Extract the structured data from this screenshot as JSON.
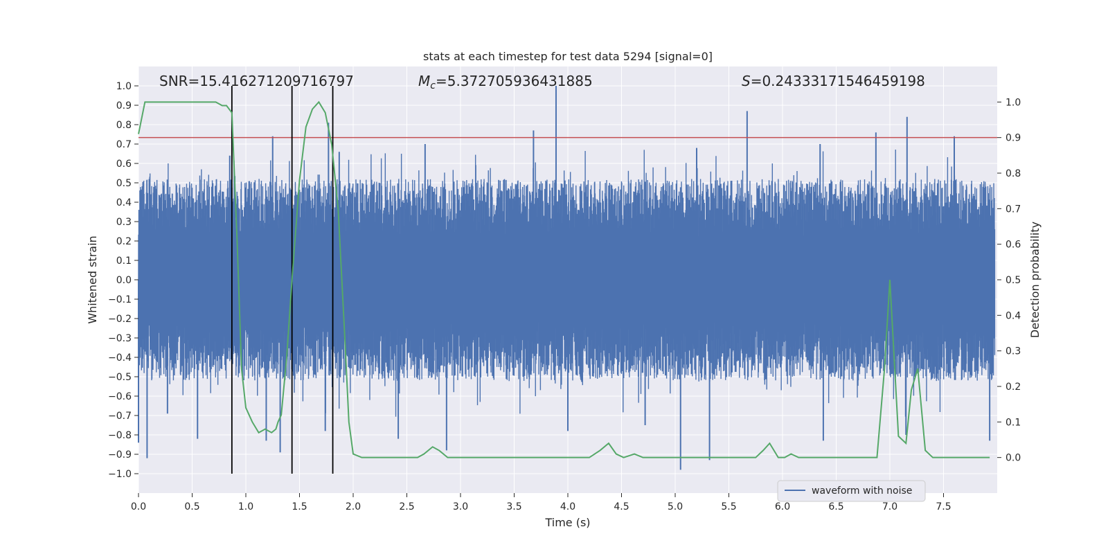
{
  "chart_data": {
    "type": "line",
    "title": "stats at each timestep for test data 5294 [signal=0]",
    "xlabel": "Time (s)",
    "ylabel_left": "Whitened strain",
    "ylabel_right": "Detection probability",
    "xlim": [
      0.0,
      8.0
    ],
    "ylim_left": [
      -1.1,
      1.1
    ],
    "ylim_right": [
      -0.1,
      1.1
    ],
    "x_ticks": [
      0.0,
      0.5,
      1.0,
      1.5,
      2.0,
      2.5,
      3.0,
      3.5,
      4.0,
      4.5,
      5.0,
      5.5,
      6.0,
      6.5,
      7.0,
      7.5
    ],
    "x_tick_labels": [
      "0.0",
      "0.5",
      "1.0",
      "1.5",
      "2.0",
      "2.5",
      "3.0",
      "3.5",
      "4.0",
      "4.5",
      "5.0",
      "5.5",
      "6.0",
      "6.5",
      "7.0",
      "7.5"
    ],
    "y_left_ticks": [
      1.0,
      0.9,
      0.8,
      0.7,
      0.6,
      0.5,
      0.4,
      0.3,
      0.2,
      0.1,
      0.0,
      -0.1,
      -0.2,
      -0.3,
      -0.4,
      -0.5,
      -0.6,
      -0.7,
      -0.8,
      -0.9,
      -1.0
    ],
    "y_left_tick_labels": [
      "1.0",
      "0.9",
      "0.8",
      "0.7",
      "0.6",
      "0.5",
      "0.4",
      "0.3",
      "0.2",
      "0.1",
      "0.0",
      "−0.1",
      "−0.2",
      "−0.3",
      "−0.4",
      "−0.5",
      "−0.6",
      "−0.7",
      "−0.8",
      "−0.9",
      "−1.0"
    ],
    "y_right_ticks": [
      1.0,
      0.9,
      0.8,
      0.7,
      0.6,
      0.5,
      0.4,
      0.3,
      0.2,
      0.1,
      0.0
    ],
    "y_right_tick_labels": [
      "1.0",
      "0.9",
      "0.8",
      "0.7",
      "0.6",
      "0.5",
      "0.4",
      "0.3",
      "0.2",
      "0.1",
      "0.0"
    ],
    "annotations": {
      "snr": "SNR=15.416271209716797",
      "mc_symbol": "M",
      "mc_sub": "c",
      "mc_value": "=5.372705936431885",
      "s_symbol": "S",
      "s_value": "=0.24333171546459198"
    },
    "threshold": {
      "value": 0.9,
      "axis": "right",
      "color": "#c44e52"
    },
    "vertical_markers": [
      0.87,
      1.43,
      1.81
    ],
    "legend": {
      "label": "waveform with noise",
      "placement": "bottom-right"
    },
    "colors": {
      "waveform": "#4c72b0",
      "probability": "#55a868",
      "markers": "#000000",
      "background": "#eaeaf2",
      "grid": "#ffffff"
    },
    "waveform": {
      "description_series": "waveform with noise",
      "spikes": [
        {
          "t": 0.0,
          "v": -0.84
        },
        {
          "t": 0.08,
          "v": -0.92
        },
        {
          "t": 0.55,
          "v": -0.82
        },
        {
          "t": 0.27,
          "v": -0.69
        },
        {
          "t": 0.83,
          "v": 0.47
        },
        {
          "t": 0.85,
          "v": 0.64
        },
        {
          "t": 1.19,
          "v": -0.83
        },
        {
          "t": 1.25,
          "v": 0.74
        },
        {
          "t": 1.32,
          "v": -0.89
        },
        {
          "t": 1.74,
          "v": -0.78
        },
        {
          "t": 1.77,
          "v": 0.81
        },
        {
          "t": 1.87,
          "v": 0.66
        },
        {
          "t": 2.42,
          "v": -0.82
        },
        {
          "t": 2.67,
          "v": 0.7
        },
        {
          "t": 2.87,
          "v": -0.88
        },
        {
          "t": 3.68,
          "v": 0.77
        },
        {
          "t": 3.89,
          "v": 1.0
        },
        {
          "t": 4.0,
          "v": -0.78
        },
        {
          "t": 4.72,
          "v": -0.75
        },
        {
          "t": 5.05,
          "v": -0.98
        },
        {
          "t": 5.2,
          "v": 0.68
        },
        {
          "t": 5.32,
          "v": -0.93
        },
        {
          "t": 5.67,
          "v": 0.87
        },
        {
          "t": 6.35,
          "v": 0.7
        },
        {
          "t": 6.38,
          "v": -0.83
        },
        {
          "t": 6.87,
          "v": 0.76
        },
        {
          "t": 7.16,
          "v": 0.84
        },
        {
          "t": 7.15,
          "v": -0.8
        },
        {
          "t": 7.6,
          "v": 0.74
        },
        {
          "t": 7.93,
          "v": -0.83
        }
      ]
    },
    "probability": {
      "x": [
        0.0,
        0.06,
        0.12,
        0.2,
        0.3,
        0.4,
        0.5,
        0.6,
        0.66,
        0.72,
        0.78,
        0.82,
        0.87,
        0.92,
        0.96,
        1.0,
        1.06,
        1.12,
        1.18,
        1.24,
        1.28,
        1.3,
        1.33,
        1.38,
        1.43,
        1.5,
        1.56,
        1.62,
        1.68,
        1.74,
        1.8,
        1.86,
        1.92,
        1.96,
        2.0,
        2.08,
        2.15,
        2.3,
        2.5,
        2.6,
        2.66,
        2.74,
        2.8,
        2.88,
        3.0,
        3.08,
        3.3,
        3.5,
        3.8,
        4.0,
        4.2,
        4.3,
        4.38,
        4.45,
        4.52,
        4.62,
        4.7,
        4.8,
        4.9,
        5.0,
        5.2,
        5.4,
        5.6,
        5.75,
        5.82,
        5.88,
        5.96,
        6.02,
        6.08,
        6.15,
        6.3,
        6.5,
        6.62,
        6.8,
        6.88,
        6.95,
        7.0,
        7.08,
        7.15,
        7.2,
        7.26,
        7.33,
        7.4,
        7.6,
        7.8,
        7.93
      ],
      "y": [
        0.91,
        1.0,
        1.0,
        1.0,
        1.0,
        1.0,
        1.0,
        1.0,
        1.0,
        1.0,
        0.99,
        0.99,
        0.97,
        0.6,
        0.25,
        0.14,
        0.1,
        0.07,
        0.08,
        0.07,
        0.08,
        0.1,
        0.12,
        0.28,
        0.5,
        0.78,
        0.93,
        0.98,
        1.0,
        0.97,
        0.88,
        0.7,
        0.35,
        0.1,
        0.01,
        0.0,
        0.0,
        0.0,
        0.0,
        0.0,
        0.01,
        0.03,
        0.02,
        0.0,
        0.0,
        0.0,
        0.0,
        0.0,
        0.0,
        0.0,
        0.0,
        0.02,
        0.04,
        0.01,
        0.0,
        0.01,
        0.0,
        0.0,
        0.0,
        0.0,
        0.0,
        0.0,
        0.0,
        0.0,
        0.02,
        0.04,
        0.0,
        0.0,
        0.01,
        0.0,
        0.0,
        0.0,
        0.0,
        0.0,
        0.0,
        0.25,
        0.5,
        0.06,
        0.04,
        0.19,
        0.25,
        0.02,
        0.0,
        0.0,
        0.0,
        0.0
      ]
    }
  }
}
